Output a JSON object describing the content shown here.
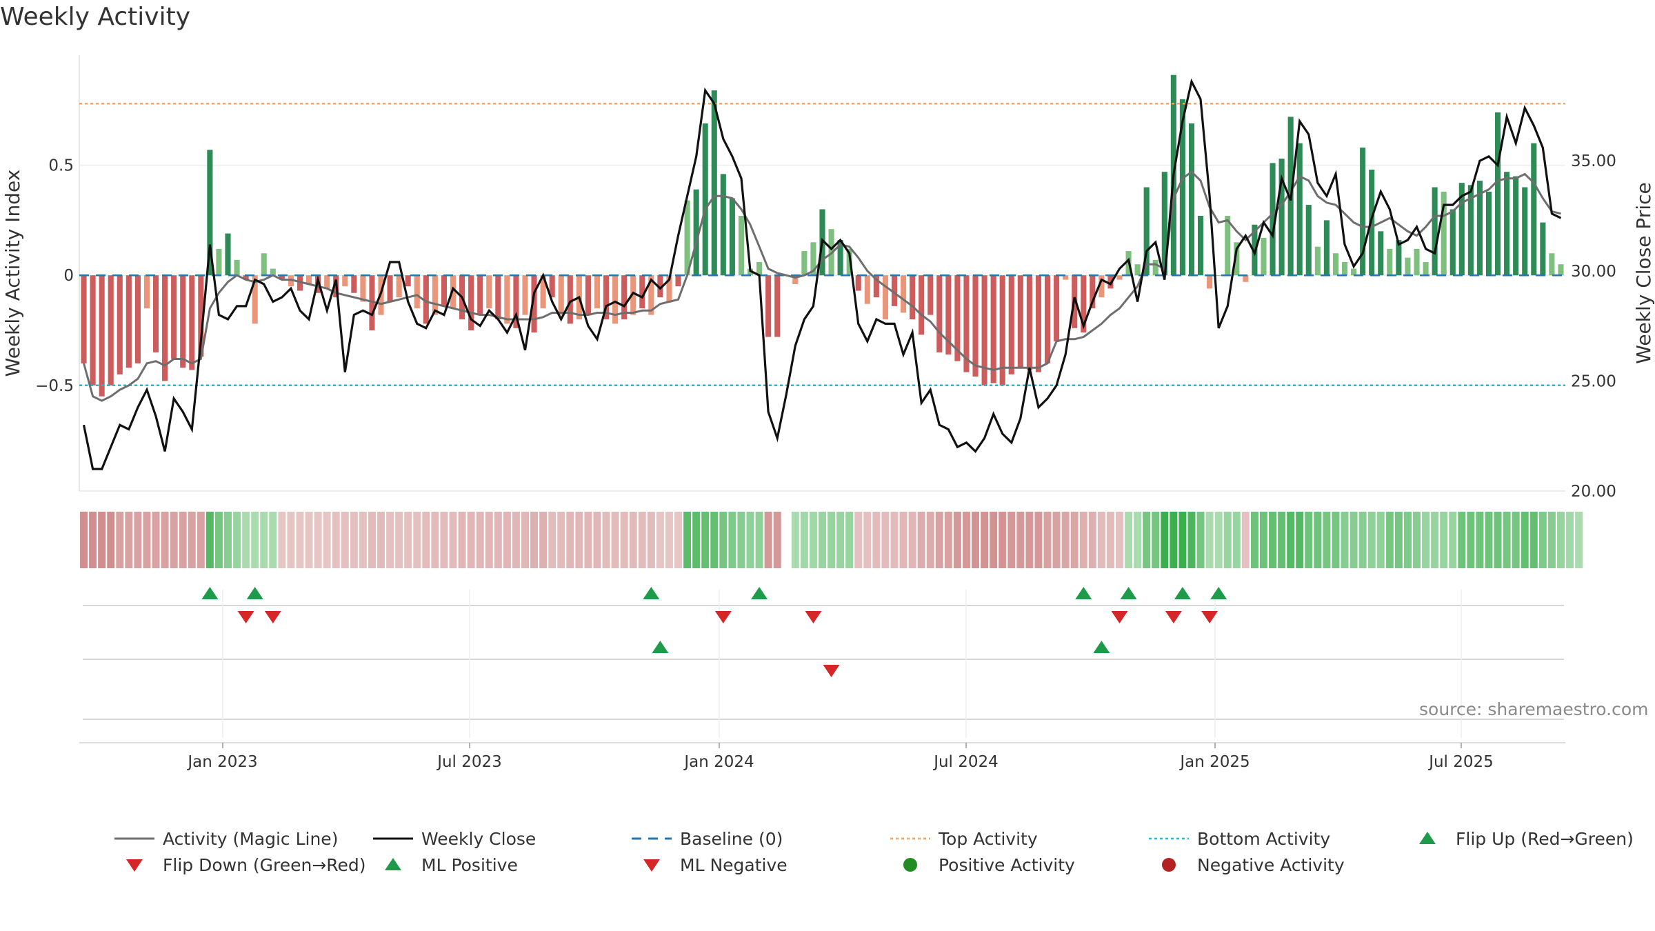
{
  "title": "Weekly Activity",
  "source": "source: sharemaestro.com",
  "colors": {
    "pos_strong": "#2e8b57",
    "pos_light": "#7fbf7f",
    "neg_strong": "#cd5c5c",
    "neg_light": "#e9967a",
    "magic_line": "#6e6e6e",
    "close": "#111111",
    "baseline": "#1f77b4",
    "top": "#f4a460",
    "bottom": "#17becf",
    "flip_up": "#1e9b4a",
    "flip_down": "#d62728",
    "pos_dot": "#228b22",
    "neg_dot": "#b22222"
  },
  "chart_data": {
    "type": "bar",
    "title": "Weekly Activity",
    "ylabel": "Weekly Activity Index",
    "y2label": "Weekly Close Price",
    "ylim": [
      -0.98,
      1.0
    ],
    "y2lim": [
      20.0,
      39.8
    ],
    "y_ticks": [
      {
        "v": 0.5,
        "label": "0.5"
      },
      {
        "v": 0,
        "label": "0"
      },
      {
        "v": -0.5,
        "label": "−0.5"
      }
    ],
    "y2_ticks": [
      {
        "v": 35,
        "label": "35.00"
      },
      {
        "v": 30,
        "label": "30.00"
      },
      {
        "v": 25,
        "label": "25.00"
      },
      {
        "v": 20,
        "label": "20.00"
      }
    ],
    "x_ticks": [
      "Jan 2023",
      "Jul 2023",
      "Jan 2024",
      "Jul 2024",
      "Jan 2025",
      "Jul 2025"
    ],
    "top_activity": 0.78,
    "bottom_activity": -0.5,
    "baseline": 0,
    "activity": [
      -0.4,
      -0.5,
      -0.55,
      -0.5,
      -0.45,
      -0.42,
      -0.4,
      -0.15,
      -0.35,
      -0.48,
      -0.38,
      -0.42,
      -0.43,
      -0.37,
      0.57,
      0.12,
      0.19,
      0.07,
      -0.02,
      -0.22,
      0.1,
      0.03,
      -0.02,
      -0.05,
      -0.07,
      -0.04,
      -0.08,
      -0.06,
      -0.1,
      -0.05,
      -0.08,
      -0.12,
      -0.25,
      -0.18,
      -0.12,
      -0.1,
      -0.05,
      -0.15,
      -0.22,
      -0.18,
      -0.14,
      -0.15,
      -0.2,
      -0.25,
      -0.18,
      -0.15,
      -0.2,
      -0.22,
      -0.24,
      -0.18,
      -0.26,
      -0.15,
      -0.1,
      -0.18,
      -0.22,
      -0.2,
      -0.18,
      -0.15,
      -0.2,
      -0.22,
      -0.2,
      -0.18,
      -0.15,
      -0.18,
      -0.1,
      -0.12,
      -0.05,
      0.34,
      0.39,
      0.69,
      0.84,
      0.46,
      0.35,
      0.27,
      0.03,
      0.06,
      -0.28,
      -0.28,
      0.0,
      -0.04,
      0.11,
      0.15,
      0.3,
      0.21,
      0.16,
      0.12,
      -0.07,
      -0.13,
      -0.1,
      -0.2,
      -0.14,
      -0.17,
      -0.2,
      -0.27,
      -0.18,
      -0.35,
      -0.36,
      -0.39,
      -0.44,
      -0.46,
      -0.5,
      -0.49,
      -0.5,
      -0.45,
      -0.42,
      -0.43,
      -0.44,
      -0.4,
      -0.3,
      -0.02,
      -0.24,
      -0.26,
      -0.15,
      -0.1,
      -0.06,
      -0.02,
      0.11,
      0.05,
      0.4,
      0.07,
      0.47,
      0.91,
      0.8,
      0.69,
      0.27,
      -0.06,
      0.0,
      0.27,
      0.15,
      -0.03,
      0.23,
      0.17,
      0.51,
      0.53,
      0.72,
      0.6,
      0.32,
      0.13,
      0.25,
      0.1,
      0.06,
      0.03,
      0.58,
      0.48,
      0.2,
      0.12,
      0.16,
      0.08,
      0.12,
      0.06,
      0.4,
      0.38,
      0.3,
      0.42,
      0.41,
      0.43,
      0.38,
      0.74,
      0.47,
      0.45,
      0.4,
      0.6,
      0.24,
      0.1,
      0.05
    ],
    "magic_line": [
      -0.4,
      -0.55,
      -0.57,
      -0.55,
      -0.52,
      -0.5,
      -0.47,
      -0.4,
      -0.39,
      -0.41,
      -0.38,
      -0.38,
      -0.4,
      -0.38,
      -0.15,
      -0.08,
      -0.03,
      0.0,
      -0.02,
      -0.03,
      -0.02,
      0.0,
      -0.02,
      -0.02,
      -0.03,
      -0.04,
      -0.05,
      -0.06,
      -0.08,
      -0.09,
      -0.1,
      -0.11,
      -0.12,
      -0.13,
      -0.12,
      -0.11,
      -0.1,
      -0.09,
      -0.12,
      -0.13,
      -0.14,
      -0.15,
      -0.16,
      -0.17,
      -0.18,
      -0.18,
      -0.19,
      -0.2,
      -0.2,
      -0.2,
      -0.2,
      -0.19,
      -0.17,
      -0.17,
      -0.17,
      -0.18,
      -0.18,
      -0.17,
      -0.17,
      -0.18,
      -0.17,
      -0.17,
      -0.16,
      -0.16,
      -0.13,
      -0.12,
      -0.11,
      0.0,
      0.15,
      0.3,
      0.36,
      0.36,
      0.35,
      0.3,
      0.23,
      0.13,
      0.03,
      0.01,
      0.0,
      -0.01,
      0.0,
      0.02,
      0.07,
      0.1,
      0.14,
      0.13,
      0.08,
      0.02,
      -0.02,
      -0.05,
      -0.08,
      -0.11,
      -0.14,
      -0.18,
      -0.21,
      -0.26,
      -0.3,
      -0.34,
      -0.38,
      -0.41,
      -0.42,
      -0.43,
      -0.42,
      -0.42,
      -0.42,
      -0.42,
      -0.42,
      -0.4,
      -0.3,
      -0.29,
      -0.29,
      -0.28,
      -0.25,
      -0.22,
      -0.18,
      -0.15,
      -0.1,
      -0.05,
      0.05,
      0.05,
      0.03,
      0.35,
      0.44,
      0.47,
      0.43,
      0.31,
      0.24,
      0.25,
      0.2,
      0.16,
      0.2,
      0.24,
      0.28,
      0.32,
      0.38,
      0.45,
      0.43,
      0.36,
      0.33,
      0.32,
      0.28,
      0.24,
      0.22,
      0.22,
      0.24,
      0.26,
      0.23,
      0.2,
      0.18,
      0.22,
      0.27,
      0.27,
      0.29,
      0.33,
      0.35,
      0.37,
      0.39,
      0.43,
      0.44,
      0.44,
      0.46,
      0.42,
      0.35,
      0.29,
      0.28
    ],
    "weekly_close": [
      23.0,
      21.0,
      21.0,
      22.0,
      23.0,
      22.8,
      23.8,
      24.6,
      23.4,
      21.8,
      24.2,
      23.6,
      22.8,
      26.8,
      31.2,
      28.0,
      27.8,
      28.4,
      28.4,
      29.6,
      29.4,
      28.6,
      28.8,
      29.2,
      28.2,
      27.8,
      29.6,
      28.2,
      29.6,
      25.4,
      28.0,
      28.2,
      28.0,
      29.0,
      30.4,
      30.4,
      28.6,
      27.6,
      27.4,
      28.2,
      28.0,
      29.2,
      28.8,
      27.8,
      27.5,
      28.2,
      27.8,
      27.2,
      28.0,
      26.4,
      29.0,
      29.8,
      28.6,
      27.8,
      28.6,
      28.8,
      27.5,
      26.9,
      28.4,
      28.6,
      28.4,
      29.0,
      28.8,
      29.6,
      29.2,
      29.6,
      31.6,
      33.4,
      35.2,
      38.2,
      37.6,
      36.0,
      35.2,
      34.2,
      30.0,
      29.8,
      23.6,
      22.4,
      24.4,
      26.6,
      27.8,
      28.4,
      31.4,
      31.0,
      31.4,
      30.8,
      27.6,
      26.8,
      27.8,
      27.6,
      27.6,
      26.2,
      27.2,
      24.0,
      24.6,
      23.0,
      22.8,
      22.0,
      22.2,
      21.8,
      22.4,
      23.5,
      22.6,
      22.2,
      23.3,
      25.6,
      23.8,
      24.2,
      24.8,
      26.2,
      28.8,
      27.5,
      28.6,
      29.6,
      29.4,
      30.1,
      30.5,
      28.6,
      30.9,
      31.3,
      29.6,
      34.4,
      36.8,
      38.6,
      37.8,
      33.4,
      27.4,
      28.4,
      31.0,
      31.6,
      30.8,
      32.2,
      31.6,
      34.2,
      33.2,
      36.8,
      36.2,
      34.0,
      33.4,
      34.4,
      31.2,
      30.2,
      30.8,
      32.4,
      33.6,
      32.8,
      31.2,
      31.4,
      32.0,
      31.0,
      30.8,
      33.0,
      33.0,
      33.4,
      33.6,
      35.0,
      35.2,
      34.8,
      37.0,
      35.8,
      37.4,
      36.6,
      35.6,
      32.6,
      32.4
    ],
    "heatmap_strip": [
      -0.8,
      -0.8,
      -0.8,
      -0.8,
      -0.6,
      -0.6,
      -0.6,
      -0.6,
      -0.6,
      -0.6,
      -0.6,
      -0.6,
      -0.6,
      -0.6,
      0.8,
      0.6,
      0.5,
      0.4,
      0.3,
      0.3,
      0.3,
      0.3,
      -0.25,
      -0.25,
      -0.25,
      -0.25,
      -0.25,
      -0.25,
      -0.3,
      -0.3,
      -0.3,
      -0.3,
      -0.35,
      -0.35,
      -0.3,
      -0.3,
      -0.3,
      -0.3,
      -0.35,
      -0.35,
      -0.35,
      -0.35,
      -0.4,
      -0.4,
      -0.4,
      -0.4,
      -0.4,
      -0.4,
      -0.4,
      -0.4,
      -0.45,
      -0.45,
      -0.35,
      -0.35,
      -0.4,
      -0.4,
      -0.4,
      -0.4,
      -0.35,
      -0.35,
      -0.35,
      -0.35,
      -0.35,
      -0.35,
      -0.25,
      -0.25,
      -0.25,
      0.75,
      0.75,
      0.7,
      0.7,
      0.6,
      0.55,
      0.5,
      0.45,
      0.45,
      -0.7,
      -0.7,
      0.0,
      0.3,
      0.35,
      0.35,
      0.4,
      0.4,
      0.4,
      0.4,
      -0.3,
      -0.3,
      -0.35,
      -0.35,
      -0.35,
      -0.4,
      -0.4,
      -0.5,
      -0.5,
      -0.6,
      -0.6,
      -0.7,
      -0.7,
      -0.75,
      -0.75,
      -0.75,
      -0.75,
      -0.7,
      -0.7,
      -0.7,
      -0.7,
      -0.6,
      -0.6,
      -0.55,
      -0.55,
      -0.45,
      -0.45,
      -0.35,
      -0.35,
      -0.3,
      0.3,
      0.3,
      0.6,
      0.6,
      0.95,
      0.95,
      0.95,
      0.85,
      0.6,
      0.3,
      0.3,
      0.4,
      0.4,
      -0.3,
      0.65,
      0.65,
      0.7,
      0.7,
      0.8,
      0.8,
      0.65,
      0.65,
      0.6,
      0.6,
      0.5,
      0.5,
      0.5,
      0.45,
      0.45,
      0.6,
      0.6,
      0.55,
      0.5,
      0.4,
      0.4,
      0.4,
      0.4,
      0.65,
      0.65,
      0.65,
      0.65,
      0.65,
      0.6,
      0.6,
      0.7,
      0.7,
      0.55,
      0.5,
      0.4,
      0.35,
      0.3
    ],
    "flip_up": [
      14,
      19,
      63,
      75,
      111,
      116,
      122,
      126
    ],
    "flip_down": [
      18,
      21,
      71,
      81,
      115,
      121,
      125
    ],
    "ml_positive": [
      64,
      113
    ],
    "ml_negative": [
      83
    ],
    "positive_activity": [],
    "negative_activity": []
  },
  "legend": [
    {
      "key": "magic",
      "label": "Activity (Magic Line)"
    },
    {
      "key": "close",
      "label": "Weekly Close"
    },
    {
      "key": "baseline",
      "label": "Baseline (0)"
    },
    {
      "key": "top",
      "label": "Top Activity"
    },
    {
      "key": "bottom",
      "label": "Bottom Activity"
    },
    {
      "key": "flipup",
      "label": "Flip Up (Red→Green)"
    },
    {
      "key": "flipdown",
      "label": "Flip Down (Green→Red)"
    },
    {
      "key": "mlpos",
      "label": "ML Positive"
    },
    {
      "key": "mlneg",
      "label": "ML Negative"
    },
    {
      "key": "posdot",
      "label": "Positive Activity"
    },
    {
      "key": "negdot",
      "label": "Negative Activity"
    }
  ]
}
